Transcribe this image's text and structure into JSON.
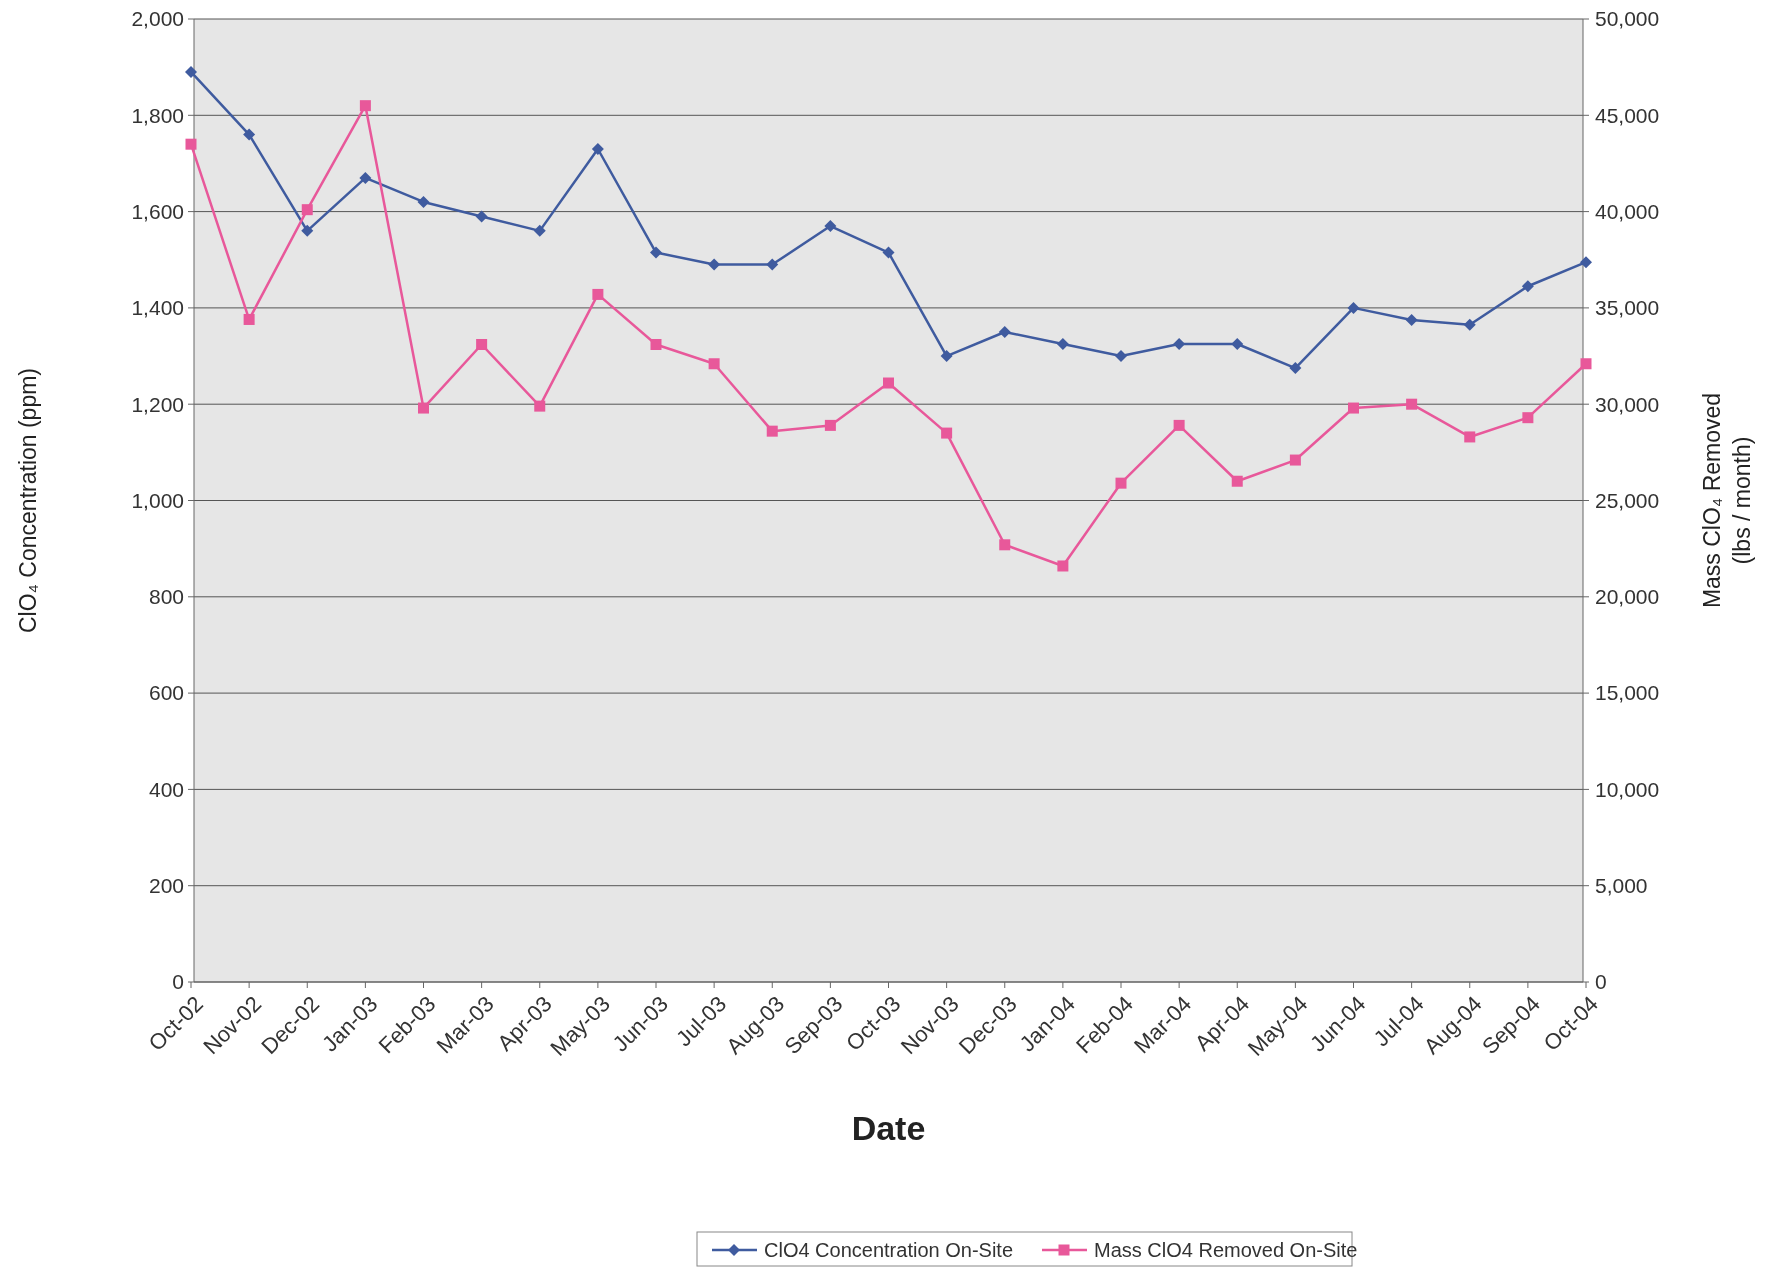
{
  "chart_data": {
    "type": "line",
    "categories": [
      "Oct-02",
      "Nov-02",
      "Dec-02",
      "Jan-03",
      "Feb-03",
      "Mar-03",
      "Apr-03",
      "May-03",
      "Jun-03",
      "Jul-03",
      "Aug-03",
      "Sep-03",
      "Oct-03",
      "Nov-03",
      "Dec-03",
      "Jan-04",
      "Feb-04",
      "Mar-04",
      "Apr-04",
      "May-04",
      "Jun-04",
      "Jul-04",
      "Aug-04",
      "Sep-04",
      "Oct-04"
    ],
    "series": [
      {
        "name": "ClO4 Concentration On-Site",
        "color": "#3f5b9f",
        "marker": "diamond",
        "values": [
          1890,
          1760,
          1560,
          1670,
          1620,
          1590,
          1560,
          1730,
          1515,
          1490,
          1490,
          1570,
          1515,
          1300,
          1350,
          1325,
          1300,
          1325,
          1325,
          1275,
          1400,
          1375,
          1365,
          1445,
          1495
        ]
      },
      {
        "name": "Mass ClO4 Removed On-Site",
        "color": "#e8589a",
        "marker": "square",
        "axis": "y2",
        "values": [
          43500,
          34400,
          40100,
          45500,
          29800,
          33100,
          29900,
          35700,
          33100,
          32100,
          28600,
          28900,
          31100,
          28500,
          22700,
          21600,
          25900,
          28900,
          26000,
          27100,
          29800,
          30000,
          28300,
          29300,
          32100
        ]
      }
    ],
    "xlabel": "Date",
    "ylabel": "ClO₄ Concentration (ppm)",
    "y2label": "Mass ClO₄ Removed\n(lbs / month)",
    "ylim": [
      0,
      2000
    ],
    "yticks": [
      0,
      200,
      400,
      600,
      800,
      {
        "value": 1000,
        "label": "1,000"
      },
      {
        "value": 1200,
        "label": "1,200"
      },
      {
        "value": 1400,
        "label": "1,400"
      },
      {
        "value": 1600,
        "label": "1,600"
      },
      {
        "value": 1800,
        "label": "1,800"
      },
      {
        "value": 2000,
        "label": "2,000"
      }
    ],
    "y2lim": [
      0,
      50000
    ],
    "y2ticks": [
      0,
      {
        "value": 5000,
        "label": "5,000"
      },
      {
        "value": 10000,
        "label": "10,000"
      },
      {
        "value": 15000,
        "label": "15,000"
      },
      {
        "value": 20000,
        "label": "20,000"
      },
      {
        "value": 25000,
        "label": "25,000"
      },
      {
        "value": 30000,
        "label": "30,000"
      },
      {
        "value": 35000,
        "label": "35,000"
      },
      {
        "value": 40000,
        "label": "40,000"
      },
      {
        "value": 45000,
        "label": "45,000"
      },
      {
        "value": 50000,
        "label": "50,000"
      }
    ],
    "grid": "y",
    "legend": "bottom"
  }
}
